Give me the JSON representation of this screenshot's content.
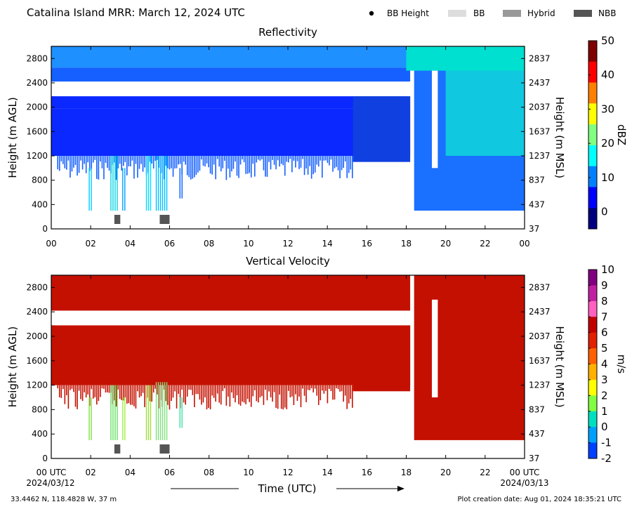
{
  "header": {
    "title": "Catalina Island MRR:  March 12, 2024 UTC",
    "legend": [
      {
        "label": "BB Height",
        "type": "dot",
        "color": "#000000"
      },
      {
        "label": "BB",
        "type": "swatch",
        "color": "#dddddd"
      },
      {
        "label": "Hybrid",
        "type": "swatch",
        "color": "#999999"
      },
      {
        "label": "NBB",
        "type": "swatch",
        "color": "#555555"
      }
    ]
  },
  "footer": {
    "location": "33.4462 N, 118.4828 W, 37 m",
    "creation": "Plot creation date: Aug 01, 2024 18:35:21 UTC",
    "xlabel": "Time (UTC)",
    "start_date": "2024/03/12",
    "end_date": "2024/03/13"
  },
  "chart_data": [
    {
      "type": "heatmap",
      "title": "Reflectivity",
      "ylabel": "Height (m AGL)",
      "ylabel_right": "Height (m MSL)",
      "colorbar_label": "dBZ",
      "x_range": [
        0,
        24
      ],
      "y_range": [
        0,
        3000
      ],
      "x_ticks": [
        "00",
        "02",
        "04",
        "06",
        "08",
        "10",
        "12",
        "14",
        "16",
        "18",
        "20",
        "22",
        "00"
      ],
      "y_ticks": [
        0,
        400,
        800,
        1200,
        1600,
        2000,
        2400,
        2800
      ],
      "y_ticks_right": [
        37,
        437,
        837,
        1237,
        1637,
        2037,
        2437,
        2837
      ],
      "colorbar_range": [
        -5,
        50
      ],
      "colorbar_ticks": [
        0,
        10,
        20,
        30,
        40,
        50
      ],
      "colorbar_colors": [
        "#00007f",
        "#0000ff",
        "#0080ff",
        "#00ffff",
        "#80ff80",
        "#ffff00",
        "#ff8000",
        "#ff0000",
        "#7f0000"
      ],
      "regions": [
        {
          "t": [
            0,
            18.2
          ],
          "h": [
            2650,
            3000
          ],
          "color": "#1e90ff"
        },
        {
          "t": [
            0,
            18.2
          ],
          "h": [
            2420,
            2650
          ],
          "color": "#1560ff"
        },
        {
          "t": [
            0,
            18.2
          ],
          "h": [
            1980,
            2180
          ],
          "color": "#0a28ff"
        },
        {
          "t": [
            0,
            18.2
          ],
          "h": [
            1200,
            1980
          ],
          "color": "#0a28ff"
        },
        {
          "t": [
            15.3,
            18.2
          ],
          "h": [
            1100,
            2180
          ],
          "color": "#1040e0"
        },
        {
          "t": [
            18.4,
            24
          ],
          "h": [
            300,
            3000
          ],
          "color": "#1a70ff"
        },
        {
          "t": [
            20.0,
            24
          ],
          "h": [
            1200,
            2900
          ],
          "color": "#10c8e0"
        },
        {
          "t": [
            18.0,
            24
          ],
          "h": [
            2600,
            3000
          ],
          "color": "#00e0d0"
        }
      ],
      "gaps": [
        {
          "t": [
            0.2,
            18.2
          ],
          "h": [
            2180,
            2420
          ]
        },
        {
          "t": [
            19.3,
            19.6
          ],
          "h": [
            1000,
            2600
          ]
        }
      ],
      "columns": [
        {
          "t": [
            1.9,
            2.1
          ],
          "h": [
            300,
            1000
          ],
          "color": "#00c8ff"
        },
        {
          "t": [
            3.0,
            3.4
          ],
          "h": [
            300,
            1200
          ],
          "color": "#00d0e0"
        },
        {
          "t": [
            3.6,
            3.8
          ],
          "h": [
            300,
            1000
          ],
          "color": "#00a0ff"
        },
        {
          "t": [
            4.8,
            5.1
          ],
          "h": [
            300,
            1200
          ],
          "color": "#00e0ff"
        },
        {
          "t": [
            5.3,
            5.9
          ],
          "h": [
            300,
            1200
          ],
          "color": "#00c0ff"
        },
        {
          "t": [
            6.5,
            6.7
          ],
          "h": [
            500,
            1000
          ],
          "color": "#0060ff"
        }
      ],
      "bb_markers": [
        {
          "t": [
            3.2,
            3.5
          ],
          "type": "NBB"
        },
        {
          "t": [
            5.5,
            6.0
          ],
          "type": "NBB"
        }
      ]
    },
    {
      "type": "heatmap",
      "title": "Vertical Velocity",
      "ylabel": "Height (m AGL)",
      "ylabel_right": "Height (m MSL)",
      "colorbar_label": "m/s",
      "x_range": [
        0,
        24
      ],
      "y_range": [
        0,
        3000
      ],
      "x_ticks": [
        "00 UTC",
        "02",
        "04",
        "06",
        "08",
        "10",
        "12",
        "14",
        "16",
        "18",
        "20",
        "22",
        "00 UTC"
      ],
      "y_ticks": [
        0,
        400,
        800,
        1200,
        1600,
        2000,
        2400,
        2800
      ],
      "y_ticks_right": [
        37,
        437,
        837,
        1237,
        1637,
        2037,
        2437,
        2837
      ],
      "colorbar_range": [
        -2,
        10
      ],
      "colorbar_ticks": [
        -2,
        -1,
        0,
        1,
        2,
        3,
        4,
        5,
        6,
        7,
        8,
        9,
        10
      ],
      "colorbar_colors": [
        "#0040ff",
        "#00a0ff",
        "#00e0c0",
        "#80ff40",
        "#ffff00",
        "#ffb000",
        "#ff6000",
        "#e02000",
        "#c00000",
        "#ff60c0",
        "#c020a0",
        "#800080"
      ],
      "regions": [
        {
          "t": [
            0,
            18.2
          ],
          "h": [
            2420,
            3000
          ],
          "color": "#c41000"
        },
        {
          "t": [
            0,
            18.2
          ],
          "h": [
            1200,
            2180
          ],
          "color": "#c41000"
        },
        {
          "t": [
            15.3,
            18.2
          ],
          "h": [
            1100,
            2180
          ],
          "color": "#c41000"
        },
        {
          "t": [
            18.4,
            24
          ],
          "h": [
            300,
            3000
          ],
          "color": "#c41000"
        }
      ],
      "gaps": [
        {
          "t": [
            0.2,
            18.2
          ],
          "h": [
            2180,
            2420
          ]
        },
        {
          "t": [
            19.3,
            19.6
          ],
          "h": [
            1000,
            2600
          ]
        }
      ],
      "columns": [
        {
          "t": [
            1.9,
            2.1
          ],
          "h": [
            300,
            1000
          ],
          "color": "#80e040"
        },
        {
          "t": [
            3.0,
            3.4
          ],
          "h": [
            300,
            1200
          ],
          "color": "#60e060"
        },
        {
          "t": [
            3.6,
            3.8
          ],
          "h": [
            300,
            1000
          ],
          "color": "#a0f040"
        },
        {
          "t": [
            4.8,
            5.1
          ],
          "h": [
            300,
            1200
          ],
          "color": "#a0e040"
        },
        {
          "t": [
            5.3,
            5.9
          ],
          "h": [
            300,
            1250
          ],
          "color": "#80e080"
        },
        {
          "t": [
            6.5,
            6.7
          ],
          "h": [
            500,
            1000
          ],
          "color": "#40e0a0"
        }
      ],
      "bb_markers": [
        {
          "t": [
            3.2,
            3.5
          ],
          "type": "NBB"
        },
        {
          "t": [
            5.5,
            6.0
          ],
          "type": "NBB"
        }
      ]
    }
  ]
}
